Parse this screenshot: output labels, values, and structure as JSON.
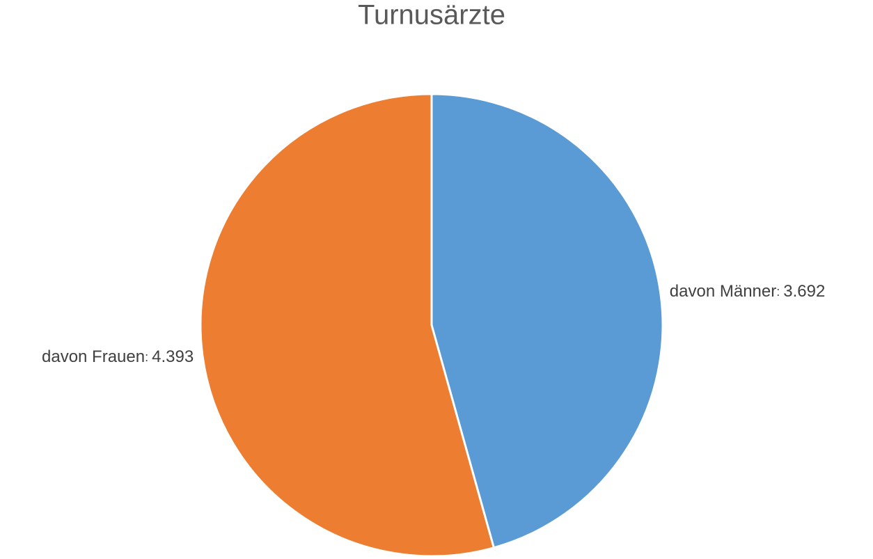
{
  "chart_data": {
    "type": "pie",
    "title": "Turnusärzte",
    "categories": [
      "davon Männer",
      "davon Frauen"
    ],
    "values": [
      3692,
      4393
    ],
    "value_labels": [
      "3.692",
      "4.393"
    ],
    "label_separator": ": ",
    "colors": [
      "#5b9bd5",
      "#ed7d31"
    ]
  }
}
